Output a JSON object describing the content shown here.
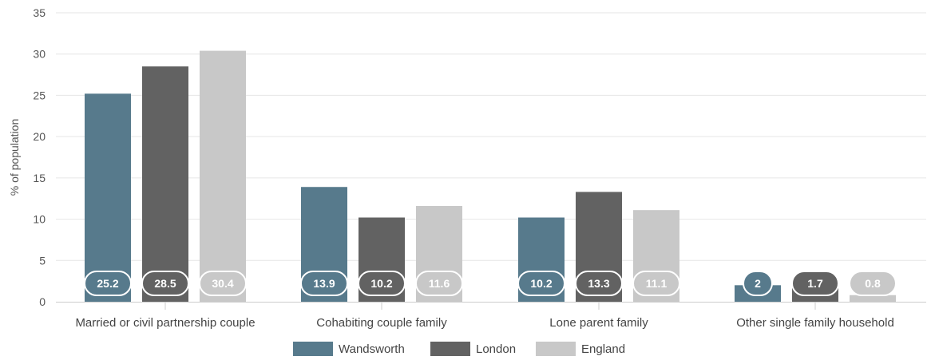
{
  "chart_data": {
    "type": "bar",
    "title": "",
    "xlabel": "",
    "ylabel": "% of population",
    "ylim": [
      0,
      35
    ],
    "yticks": [
      0,
      5,
      10,
      15,
      20,
      25,
      30,
      35
    ],
    "grid": true,
    "legend_position": "bottom",
    "categories": [
      "Married or civil partnership couple",
      "Cohabiting couple family",
      "Lone parent family",
      "Other single family household"
    ],
    "series": [
      {
        "name": "Wandsworth",
        "color": "#577a8c",
        "values": [
          25.2,
          13.9,
          10.2,
          2
        ]
      },
      {
        "name": "London",
        "color": "#626262",
        "values": [
          28.5,
          10.2,
          13.3,
          1.7
        ]
      },
      {
        "name": "England",
        "color": "#c8c8c8",
        "values": [
          30.4,
          11.6,
          11.1,
          0.8
        ]
      }
    ]
  }
}
